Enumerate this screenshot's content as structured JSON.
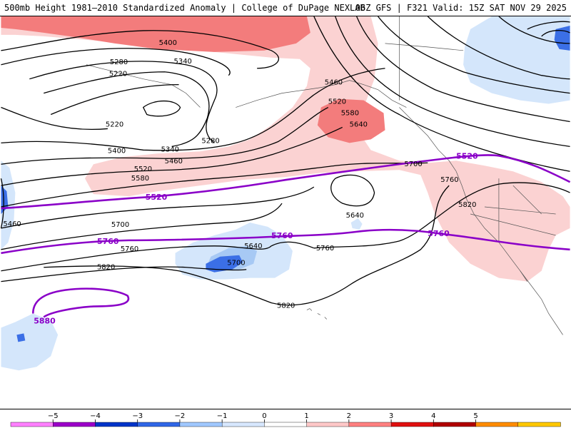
{
  "header": {
    "title_left": "500mb Height 1981–2010 Standardized Anomaly | College of DuPage NEXLAB",
    "title_right": "06Z GFS | F321 Valid: 15Z SAT NOV 29 2025"
  },
  "map": {
    "height_labels": [
      "5400",
      "5340",
      "5280",
      "5220",
      "5220",
      "5280",
      "5340",
      "5400",
      "5460",
      "5520",
      "5580",
      "5460",
      "5520",
      "5580",
      "5640",
      "5700",
      "5760",
      "5820",
      "5640",
      "5700",
      "5640",
      "5700",
      "5760",
      "5820",
      "5460"
    ],
    "highlight_labels": [
      "5520",
      "5520",
      "5760",
      "5760",
      "5760",
      "5880"
    ]
  },
  "colorbar": {
    "ticks": [
      "−5",
      "−4",
      "−3",
      "−2",
      "−1",
      "0",
      "1",
      "2",
      "3",
      "4",
      "5"
    ],
    "colors": [
      "#ff80ff",
      "#9b00c8",
      "#0034c8",
      "#3066e6",
      "#a0c8ff",
      "#d8e8ff",
      "#ffffff",
      "#ffc8c8",
      "#ff8080",
      "#e01010",
      "#b00000",
      "#ff8c00",
      "#ffc800"
    ]
  },
  "colors": {
    "neg1": "#d4e6fb",
    "neg2": "#a7c9f4",
    "neg3": "#3b6fe6",
    "pos1": "#fbd2d2",
    "pos2": "#f37c7c",
    "highlight": "#8a00c8"
  }
}
